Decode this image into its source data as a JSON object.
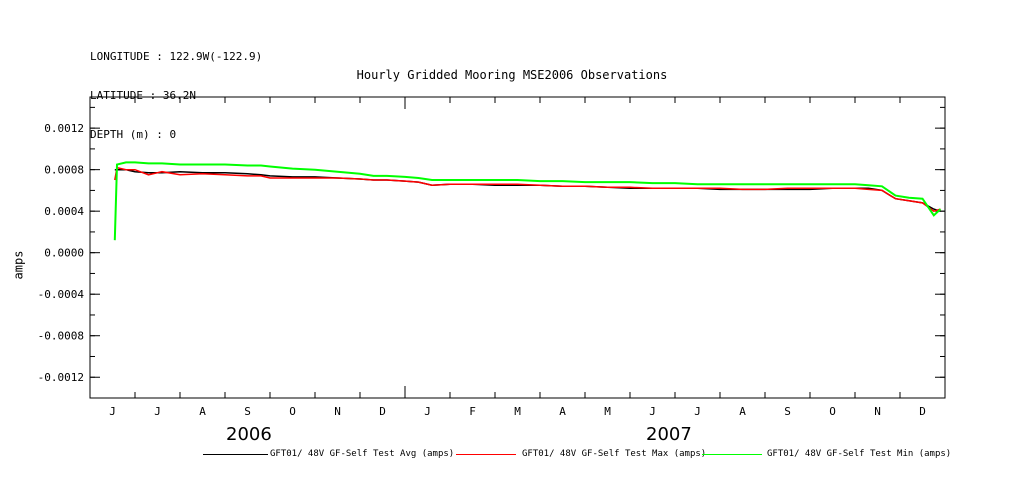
{
  "header": {
    "longitude": "LONGITUDE : 122.9W(-122.9)",
    "latitude": "LATITUDE : 36.2N",
    "depth": "DEPTH (m) : 0"
  },
  "chart_data": {
    "type": "line",
    "title": "Hourly Gridded Mooring MSE2006 Observations",
    "ylabel": "amps",
    "xlabel": "",
    "ylim": [
      -0.0014,
      0.0015
    ],
    "yticks": [
      0.0012,
      0.0008,
      0.0004,
      0.0,
      -0.0004,
      -0.0008,
      -0.0012
    ],
    "ytick_labels": [
      "0.0012",
      "0.0008",
      "0.0004",
      "0.0000",
      "-0.0004",
      "-0.0008",
      "-0.0012"
    ],
    "x_month_labels": [
      "J",
      "J",
      "A",
      "S",
      "O",
      "N",
      "D",
      "J",
      "F",
      "M",
      "A",
      "M",
      "J",
      "J",
      "A",
      "S",
      "O",
      "N",
      "D"
    ],
    "x_year_labels": [
      "2006",
      "2007"
    ],
    "x_range_months": [
      0,
      19
    ],
    "grid": false,
    "legend_position": "bottom",
    "colors": {
      "avg": "#000000",
      "max": "#ff0000",
      "min": "#00ff00"
    },
    "series": [
      {
        "name": "GFT01/ 48V GF-Self Test Avg (amps)",
        "color": "#000000",
        "x": [
          0.55,
          0.6,
          0.8,
          1.0,
          1.3,
          1.6,
          2.0,
          2.5,
          3.0,
          3.5,
          3.8,
          4.0,
          4.5,
          5.0,
          5.5,
          6.0,
          6.3,
          6.6,
          7.0,
          7.3,
          7.6,
          8.0,
          8.5,
          9.0,
          9.5,
          10.0,
          10.5,
          11.0,
          11.5,
          12.0,
          12.5,
          13.0,
          13.5,
          14.0,
          14.5,
          15.0,
          15.5,
          16.0,
          16.5,
          17.0,
          17.3,
          17.6,
          17.9,
          18.2,
          18.5,
          18.75,
          18.9
        ],
        "y": [
          0.0008,
          0.0008,
          0.0008,
          0.00078,
          0.00077,
          0.00077,
          0.00078,
          0.00077,
          0.00077,
          0.00076,
          0.00075,
          0.00074,
          0.00073,
          0.00073,
          0.00072,
          0.00071,
          0.0007,
          0.0007,
          0.00069,
          0.00068,
          0.00065,
          0.00066,
          0.00066,
          0.00065,
          0.00065,
          0.00065,
          0.00064,
          0.00064,
          0.00063,
          0.00062,
          0.00062,
          0.00062,
          0.00062,
          0.00061,
          0.00061,
          0.00061,
          0.00061,
          0.00061,
          0.00062,
          0.00062,
          0.00062,
          0.0006,
          0.00052,
          0.0005,
          0.00048,
          0.00042,
          0.0004
        ]
      },
      {
        "name": "GFT01/ 48V GF-Self Test Max (amps)",
        "color": "#ff0000",
        "x": [
          0.55,
          0.6,
          0.8,
          1.0,
          1.3,
          1.6,
          2.0,
          2.5,
          3.0,
          3.5,
          3.8,
          4.0,
          4.5,
          5.0,
          5.5,
          6.0,
          6.3,
          6.6,
          7.0,
          7.3,
          7.6,
          8.0,
          8.5,
          9.0,
          9.5,
          10.0,
          10.5,
          11.0,
          11.5,
          12.0,
          12.5,
          13.0,
          13.5,
          14.0,
          14.5,
          15.0,
          15.5,
          16.0,
          16.5,
          17.0,
          17.3,
          17.6,
          17.9,
          18.2,
          18.5,
          18.75,
          18.9
        ],
        "y": [
          0.0007,
          0.00082,
          0.0008,
          0.0008,
          0.00075,
          0.00078,
          0.00075,
          0.00076,
          0.00075,
          0.00074,
          0.00074,
          0.00072,
          0.00072,
          0.00072,
          0.00072,
          0.00071,
          0.0007,
          0.0007,
          0.00069,
          0.00068,
          0.00065,
          0.00066,
          0.00066,
          0.00066,
          0.00066,
          0.00065,
          0.00064,
          0.00064,
          0.00063,
          0.00063,
          0.00062,
          0.00062,
          0.00062,
          0.00062,
          0.00061,
          0.00061,
          0.00062,
          0.00062,
          0.00062,
          0.00062,
          0.00061,
          0.0006,
          0.00052,
          0.0005,
          0.00048,
          0.0004,
          0.00042
        ]
      },
      {
        "name": "GFT01/ 48V GF-Self Test Min (amps)",
        "color": "#00ff00",
        "x": [
          0.55,
          0.6,
          0.8,
          1.0,
          1.3,
          1.6,
          2.0,
          2.5,
          3.0,
          3.5,
          3.8,
          4.0,
          4.5,
          5.0,
          5.5,
          6.0,
          6.3,
          6.6,
          7.0,
          7.3,
          7.6,
          8.0,
          8.5,
          9.0,
          9.5,
          10.0,
          10.5,
          11.0,
          11.5,
          12.0,
          12.5,
          13.0,
          13.5,
          14.0,
          14.5,
          15.0,
          15.5,
          16.0,
          16.5,
          17.0,
          17.3,
          17.6,
          17.9,
          18.2,
          18.5,
          18.75,
          18.9
        ],
        "y": [
          0.00012,
          0.00085,
          0.00087,
          0.00087,
          0.00086,
          0.00086,
          0.00085,
          0.00085,
          0.00085,
          0.00084,
          0.00084,
          0.00083,
          0.00081,
          0.0008,
          0.00078,
          0.00076,
          0.00074,
          0.00074,
          0.00073,
          0.00072,
          0.0007,
          0.0007,
          0.0007,
          0.0007,
          0.0007,
          0.00069,
          0.00069,
          0.00068,
          0.00068,
          0.00068,
          0.00067,
          0.00067,
          0.00066,
          0.00066,
          0.00066,
          0.00066,
          0.00066,
          0.00066,
          0.00066,
          0.00066,
          0.00065,
          0.00064,
          0.00055,
          0.00053,
          0.00052,
          0.00036,
          0.00042
        ]
      }
    ]
  }
}
